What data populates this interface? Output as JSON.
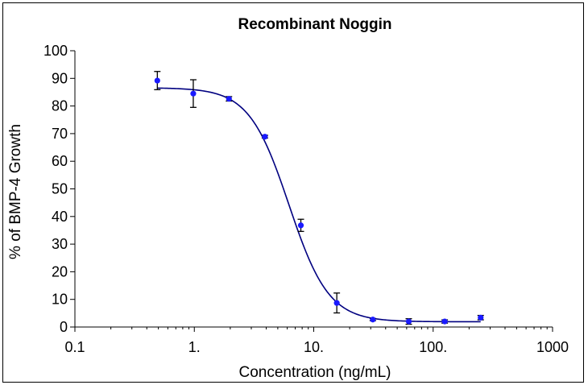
{
  "chart_data": {
    "type": "scatter",
    "title": "Recombinant Noggin",
    "xlabel": "Concentration (ng/mL)",
    "ylabel": "% of BMP-4 Growth",
    "x_scale": "log",
    "xlim": [
      0.1,
      1000
    ],
    "ylim": [
      0,
      100
    ],
    "x_ticks": [
      0.1,
      1,
      10,
      100,
      1000
    ],
    "x_tick_labels": [
      "0.1",
      "1.",
      "10.",
      "100.",
      "1000"
    ],
    "y_ticks": [
      0,
      10,
      20,
      30,
      40,
      50,
      60,
      70,
      80,
      90,
      100
    ],
    "y_tick_labels": [
      "0",
      "10",
      "20",
      "30",
      "40",
      "50",
      "60",
      "70",
      "80",
      "90",
      "100"
    ],
    "grid": false,
    "legend": "none",
    "series": [
      {
        "x": [
          0.49,
          0.98,
          1.95,
          3.9,
          7.8,
          15.6,
          31.25,
          62.5,
          125,
          250
        ],
        "y": [
          89.2,
          84.5,
          82.6,
          68.9,
          36.8,
          8.7,
          2.7,
          2.0,
          2.0,
          3.4
        ],
        "error": [
          3.3,
          5.0,
          0.8,
          0.5,
          2.2,
          3.6,
          0.4,
          1.0,
          0.6,
          0.8
        ],
        "marker_color": "#1a1aff"
      }
    ],
    "fit_curve": {
      "model": "4PL",
      "top": 86.6,
      "bottom": 1.9,
      "ec50": 6.2,
      "hill": 2.6,
      "color": "#000080"
    }
  }
}
